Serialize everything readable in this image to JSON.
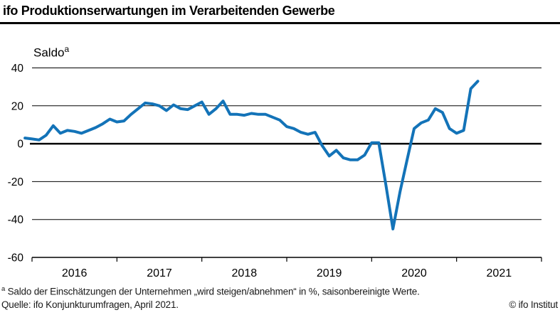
{
  "page": {
    "title": "ifo Produktionserwartungen im Verarbeitenden Gewerbe",
    "y_axis_label": "Saldo",
    "y_axis_label_sup": "a",
    "footnote_marker": "a",
    "footnote": "Saldo der Einschätzungen der Unternehmen „wird steigen/abnehmen“ in %, saisonbereinigte Werte.",
    "source": "Quelle: ifo Konjunkturumfragen, April 2021.",
    "copyright": "© ifo Institut"
  },
  "chart_data": {
    "type": "line",
    "title": "ifo Produktionserwartungen im Verarbeitenden Gewerbe",
    "ylabel": "Saldo",
    "ylabel_sup": "a",
    "ylim": [
      -60,
      40
    ],
    "yticks": [
      40,
      20,
      0,
      -20,
      -40,
      -60
    ],
    "xtick_year_labels": [
      "2016",
      "2017",
      "2018",
      "2019",
      "2020",
      "2021"
    ],
    "grid": "horizontal-only",
    "legend": "none",
    "line_color": "#1373b8",
    "series": [
      {
        "name": "ifo Produktionserwartungen (Saldo)",
        "color": "#1373b8",
        "frequency": "monthly",
        "start": "2015-12",
        "end": "2021-04",
        "values": [
          3,
          2.5,
          2,
          4.5,
          9.5,
          5.5,
          7,
          6.5,
          5.5,
          7,
          8.5,
          10.5,
          13,
          11.5,
          12,
          15.5,
          18.5,
          21.5,
          21,
          20,
          17.5,
          20.5,
          18.5,
          18,
          20,
          22,
          15.5,
          18.5,
          22.5,
          15.5,
          15.5,
          15,
          16,
          15.5,
          15.5,
          14,
          12.5,
          9,
          8,
          6,
          5,
          6,
          -1,
          -6.5,
          -3.5,
          -7.5,
          -8.5,
          -8.5,
          -6,
          0.5,
          0.5,
          -21.5,
          -45,
          -25.5,
          -8.5,
          8,
          11,
          12.5,
          18.5,
          16.5,
          8,
          5.5,
          7,
          29,
          33
        ]
      }
    ],
    "key_points": {
      "trough_2020_04": -45,
      "latest_2021_04": 33
    }
  }
}
